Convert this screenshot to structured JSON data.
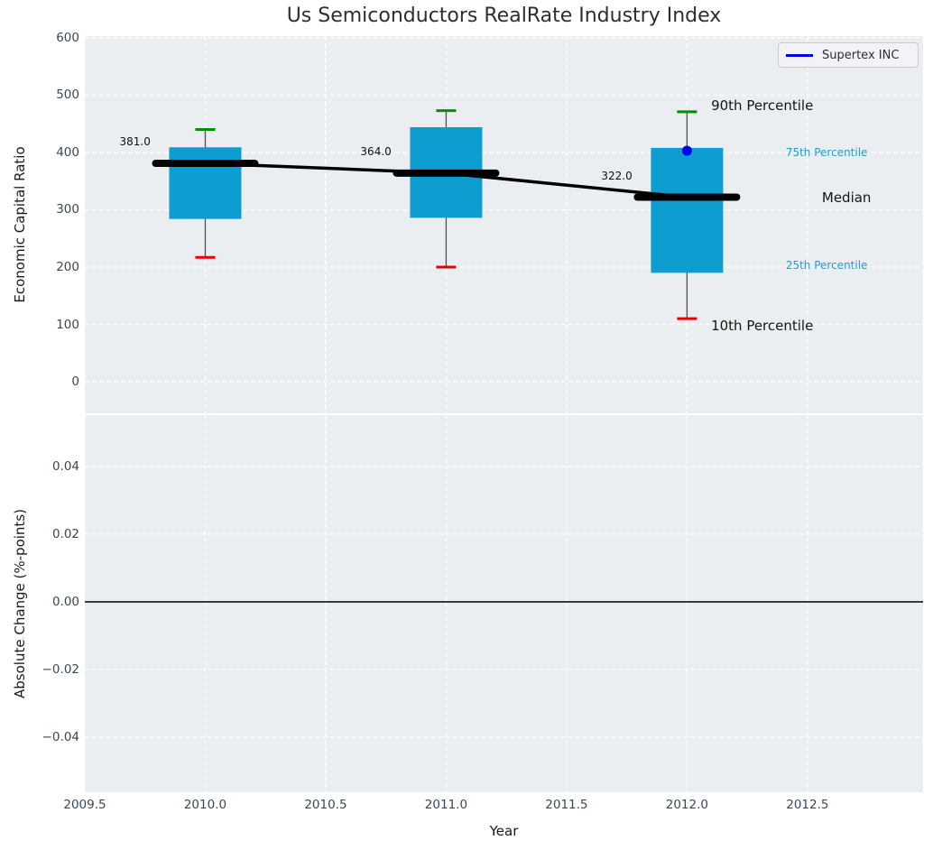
{
  "figure": {
    "title": "Us Semiconductors RealRate Industry Index",
    "legend": {
      "label": "Supertex INC",
      "line_color": "#0000ee"
    }
  },
  "colors": {
    "plot_bg": "#eaeef0",
    "grid": "#ffffff",
    "box_fill": "#0d9dd1",
    "p90_cap": "#008d00",
    "p10_cap": "#e60000",
    "median": "#000000",
    "whisker": "#4f4f4f",
    "series_point": "#0000ee",
    "zero_line": "#000000",
    "tick_label": "#3b4754",
    "percentile_label_accent": "#1a9cd8",
    "percentile_label_dark": "#141414"
  },
  "chart_data": [
    {
      "type": "boxplot",
      "title": "Us Semiconductors RealRate Industry Index",
      "ylabel": "Economic Capital Ratio",
      "xlabel": "",
      "ylim": [
        -55,
        603
      ],
      "xlim": [
        2009.5,
        2012.98
      ],
      "yticks": [
        600,
        500,
        400,
        300,
        200,
        100,
        0
      ],
      "grid": true,
      "legend_position": "upper right",
      "boxes": [
        {
          "x": 2010,
          "p10": 217,
          "q25": 284,
          "median": 381,
          "q75": 409,
          "p90": 440,
          "median_label": "381.0"
        },
        {
          "x": 2011,
          "p10": 200,
          "q25": 286,
          "median": 364,
          "q75": 444,
          "p90": 473,
          "median_label": "364.0"
        },
        {
          "x": 2012,
          "p10": 110,
          "q25": 190,
          "median": 322,
          "q75": 408,
          "p90": 471,
          "median_label": "322.0"
        }
      ],
      "median_trend_line": {
        "x": [
          2010,
          2011,
          2012
        ],
        "y": [
          381,
          364,
          322
        ]
      },
      "series": [
        {
          "name": "Supertex INC",
          "x": [
            2012
          ],
          "y": [
            403
          ]
        }
      ],
      "annotations": [
        {
          "text": "90th Percentile",
          "x": 2012.1,
          "y": 482,
          "style": "large-dark"
        },
        {
          "text": "75th Percentile",
          "x": 2012.41,
          "y": 397,
          "style": "small-accent"
        },
        {
          "text": "Median",
          "x": 2012.56,
          "y": 321,
          "style": "large-dark"
        },
        {
          "text": "25th Percentile",
          "x": 2012.41,
          "y": 200,
          "style": "small-accent"
        },
        {
          "text": "10th Percentile",
          "x": 2012.1,
          "y": 98,
          "style": "large-dark"
        }
      ]
    },
    {
      "type": "line",
      "title": "",
      "ylabel": "Absolute Change (%-points)",
      "xlabel": "Year",
      "ylim": [
        -0.0563,
        0.0552
      ],
      "xlim": [
        2009.5,
        2012.98
      ],
      "ytick_labels": [
        "0.04",
        "0.02",
        "0.00",
        "−0.02",
        "−0.04"
      ],
      "ytick_values": [
        0.04,
        0.02,
        0.0,
        -0.02,
        -0.04
      ],
      "xtick_labels": [
        "2009.5",
        "2010.0",
        "2010.5",
        "2011.0",
        "2011.5",
        "2012.0",
        "2012.5"
      ],
      "xtick_values": [
        2009.5,
        2010.0,
        2010.5,
        2011.0,
        2011.5,
        2012.0,
        2012.5
      ],
      "grid": true,
      "zero_line": true,
      "series": []
    }
  ]
}
